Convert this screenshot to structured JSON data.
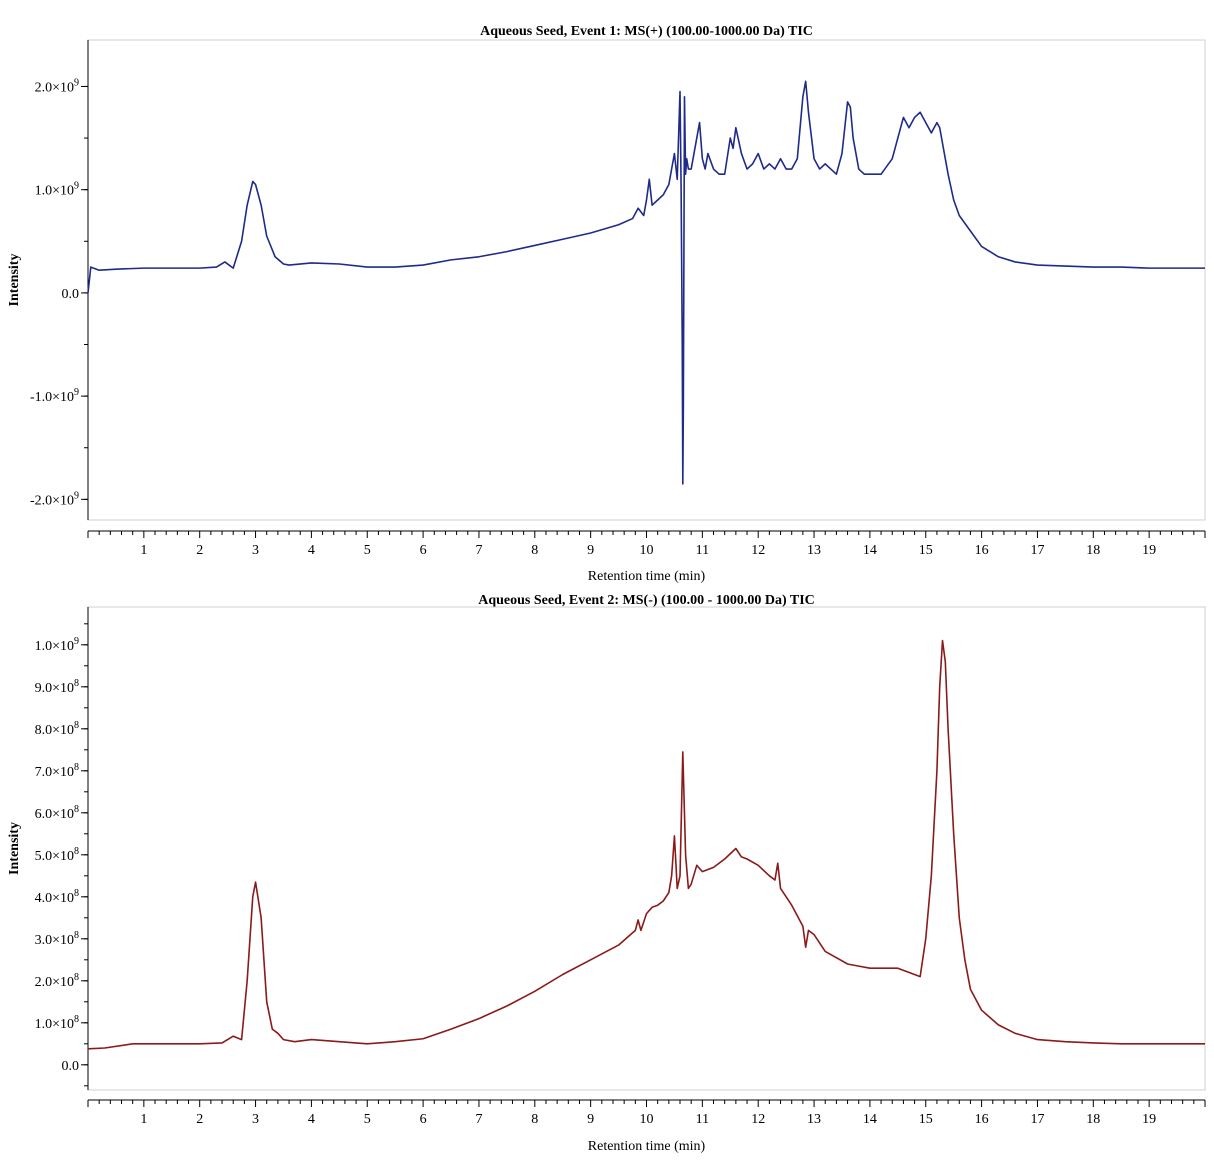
{
  "chart_data": [
    {
      "type": "line",
      "title": "Aqueous Seed, Event 1: MS(+) (100.00-1000.00 Da) TIC",
      "xlabel": "Retention time (min)",
      "ylabel": "Intensity",
      "xlim": [
        0,
        20
      ],
      "ylim": [
        -2200000000.0,
        2450000000.0
      ],
      "x_ticks": [
        "1",
        "2",
        "3",
        "4",
        "5",
        "6",
        "7",
        "8",
        "9",
        "10",
        "11",
        "12",
        "13",
        "14",
        "15",
        "16",
        "17",
        "18",
        "19"
      ],
      "y_ticks": [
        {
          "value": 2000000000.0,
          "mant": "2.0×10",
          "exp": "9"
        },
        {
          "value": 1000000000.0,
          "mant": "1.0×10",
          "exp": "9"
        },
        {
          "value": 0,
          "mant": "0.0",
          "exp": ""
        },
        {
          "value": -1000000000.0,
          "mant": "-1.0×10",
          "exp": "9"
        },
        {
          "value": -2000000000.0,
          "mant": "-2.0×10",
          "exp": "9"
        }
      ],
      "grid": false,
      "color": "#1f2a8a",
      "series": [
        {
          "x": [
            0.0,
            0.05,
            0.2,
            0.5,
            1.0,
            1.5,
            2.0,
            2.3,
            2.45,
            2.6,
            2.75,
            2.85,
            2.95,
            3.0,
            3.1,
            3.2,
            3.35,
            3.5,
            3.6,
            4.0,
            4.5,
            5.0,
            5.5,
            6.0,
            6.5,
            7.0,
            7.5,
            8.0,
            8.5,
            9.0,
            9.5,
            9.75,
            9.85,
            9.95,
            10.0,
            10.05,
            10.1,
            10.2,
            10.3,
            10.4,
            10.45,
            10.5,
            10.55,
            10.6,
            10.62,
            10.64,
            10.65,
            10.66,
            10.68,
            10.7,
            10.72,
            10.75,
            10.8,
            10.9,
            10.95,
            11.0,
            11.05,
            11.1,
            11.2,
            11.3,
            11.4,
            11.5,
            11.55,
            11.6,
            11.7,
            11.8,
            11.9,
            12.0,
            12.1,
            12.2,
            12.3,
            12.4,
            12.5,
            12.6,
            12.7,
            12.8,
            12.85,
            12.9,
            13.0,
            13.1,
            13.2,
            13.3,
            13.4,
            13.5,
            13.6,
            13.65,
            13.7,
            13.8,
            13.9,
            14.0,
            14.2,
            14.4,
            14.5,
            14.6,
            14.7,
            14.8,
            14.9,
            15.0,
            15.1,
            15.2,
            15.25,
            15.3,
            15.4,
            15.5,
            15.6,
            15.8,
            16.0,
            16.3,
            16.6,
            17.0,
            17.5,
            18.0,
            18.5,
            19.0,
            19.5,
            20.0
          ],
          "y": [
            0.0,
            250000000.0,
            220000000.0,
            230000000.0,
            240000000.0,
            240000000.0,
            240000000.0,
            250000000.0,
            300000000.0,
            240000000.0,
            500000000.0,
            850000000.0,
            1080000000.0,
            1050000000.0,
            850000000.0,
            550000000.0,
            350000000.0,
            280000000.0,
            270000000.0,
            290000000.0,
            280000000.0,
            250000000.0,
            250000000.0,
            270000000.0,
            320000000.0,
            350000000.0,
            400000000.0,
            460000000.0,
            520000000.0,
            580000000.0,
            660000000.0,
            720000000.0,
            820000000.0,
            750000000.0,
            900000000.0,
            1100000000.0,
            850000000.0,
            900000000.0,
            950000000.0,
            1050000000.0,
            1200000000.0,
            1350000000.0,
            1100000000.0,
            1950000000.0,
            1000000000.0,
            -500000000.0,
            -1850000000.0,
            -1100000000.0,
            1900000000.0,
            1150000000.0,
            1300000000.0,
            1200000000.0,
            1200000000.0,
            1500000000.0,
            1650000000.0,
            1300000000.0,
            1200000000.0,
            1350000000.0,
            1200000000.0,
            1150000000.0,
            1150000000.0,
            1500000000.0,
            1400000000.0,
            1600000000.0,
            1350000000.0,
            1200000000.0,
            1250000000.0,
            1350000000.0,
            1200000000.0,
            1250000000.0,
            1200000000.0,
            1300000000.0,
            1200000000.0,
            1200000000.0,
            1300000000.0,
            1900000000.0,
            2050000000.0,
            1750000000.0,
            1300000000.0,
            1200000000.0,
            1250000000.0,
            1200000000.0,
            1150000000.0,
            1350000000.0,
            1850000000.0,
            1800000000.0,
            1500000000.0,
            1200000000.0,
            1150000000.0,
            1150000000.0,
            1150000000.0,
            1300000000.0,
            1500000000.0,
            1700000000.0,
            1600000000.0,
            1700000000.0,
            1750000000.0,
            1650000000.0,
            1550000000.0,
            1650000000.0,
            1600000000.0,
            1450000000.0,
            1150000000.0,
            900000000.0,
            750000000.0,
            600000000.0,
            450000000.0,
            350000000.0,
            300000000.0,
            270000000.0,
            260000000.0,
            250000000.0,
            250000000.0,
            240000000.0,
            240000000.0,
            240000000.0
          ]
        }
      ]
    },
    {
      "type": "line",
      "title": "Aqueous Seed, Event 2: MS(-) (100.00 - 1000.00 Da) TIC",
      "xlabel": "Retention time (min)",
      "ylabel": "Intensity",
      "xlim": [
        0,
        20
      ],
      "ylim": [
        -60000000.0,
        1090000000.0
      ],
      "x_ticks": [
        "1",
        "2",
        "3",
        "4",
        "5",
        "6",
        "7",
        "8",
        "9",
        "10",
        "11",
        "12",
        "13",
        "14",
        "15",
        "16",
        "17",
        "18",
        "19"
      ],
      "y_ticks": [
        {
          "value": 1000000000.0,
          "mant": "1.0×10",
          "exp": "9"
        },
        {
          "value": 900000000.0,
          "mant": "9.0×10",
          "exp": "8"
        },
        {
          "value": 800000000.0,
          "mant": "8.0×10",
          "exp": "8"
        },
        {
          "value": 700000000.0,
          "mant": "7.0×10",
          "exp": "8"
        },
        {
          "value": 600000000.0,
          "mant": "6.0×10",
          "exp": "8"
        },
        {
          "value": 500000000.0,
          "mant": "5.0×10",
          "exp": "8"
        },
        {
          "value": 400000000.0,
          "mant": "4.0×10",
          "exp": "8"
        },
        {
          "value": 300000000.0,
          "mant": "3.0×10",
          "exp": "8"
        },
        {
          "value": 200000000.0,
          "mant": "2.0×10",
          "exp": "8"
        },
        {
          "value": 100000000.0,
          "mant": "1.0×10",
          "exp": "8"
        },
        {
          "value": 0,
          "mant": "0.0",
          "exp": ""
        }
      ],
      "grid": false,
      "color": "#8b1a1a",
      "series": [
        {
          "x": [
            0.0,
            0.3,
            0.8,
            1.5,
            2.0,
            2.4,
            2.6,
            2.75,
            2.85,
            2.95,
            3.0,
            3.1,
            3.2,
            3.3,
            3.4,
            3.5,
            3.7,
            4.0,
            4.5,
            5.0,
            5.5,
            6.0,
            6.5,
            7.0,
            7.5,
            8.0,
            8.5,
            9.0,
            9.5,
            9.8,
            9.85,
            9.9,
            10.0,
            10.1,
            10.2,
            10.3,
            10.4,
            10.45,
            10.5,
            10.55,
            10.6,
            10.65,
            10.7,
            10.75,
            10.8,
            10.9,
            11.0,
            11.2,
            11.4,
            11.6,
            11.7,
            11.8,
            12.0,
            12.2,
            12.3,
            12.35,
            12.4,
            12.6,
            12.8,
            12.85,
            12.9,
            13.0,
            13.2,
            13.4,
            13.6,
            13.8,
            14.0,
            14.5,
            14.9,
            15.0,
            15.1,
            15.2,
            15.25,
            15.3,
            15.35,
            15.4,
            15.5,
            15.6,
            15.7,
            15.8,
            16.0,
            16.3,
            16.6,
            17.0,
            17.5,
            18.0,
            18.5,
            19.0,
            19.5,
            20.0
          ],
          "y": [
            38000000.0,
            40000000.0,
            50000000.0,
            50000000.0,
            50000000.0,
            52000000.0,
            68000000.0,
            60000000.0,
            200000000.0,
            400000000.0,
            435000000.0,
            350000000.0,
            150000000.0,
            85000000.0,
            75000000.0,
            60000000.0,
            55000000.0,
            60000000.0,
            55000000.0,
            50000000.0,
            55000000.0,
            62000000.0,
            85000000.0,
            110000000.0,
            140000000.0,
            175000000.0,
            215000000.0,
            250000000.0,
            285000000.0,
            320000000.0,
            345000000.0,
            320000000.0,
            360000000.0,
            375000000.0,
            380000000.0,
            390000000.0,
            410000000.0,
            450000000.0,
            545000000.0,
            420000000.0,
            450000000.0,
            745000000.0,
            500000000.0,
            420000000.0,
            430000000.0,
            475000000.0,
            460000000.0,
            470000000.0,
            490000000.0,
            515000000.0,
            495000000.0,
            490000000.0,
            475000000.0,
            450000000.0,
            440000000.0,
            480000000.0,
            420000000.0,
            380000000.0,
            330000000.0,
            280000000.0,
            320000000.0,
            310000000.0,
            270000000.0,
            255000000.0,
            240000000.0,
            235000000.0,
            230000000.0,
            230000000.0,
            210000000.0,
            300000000.0,
            450000000.0,
            700000000.0,
            900000000.0,
            1010000000.0,
            960000000.0,
            800000000.0,
            550000000.0,
            350000000.0,
            250000000.0,
            180000000.0,
            130000000.0,
            95000000.0,
            75000000.0,
            60000000.0,
            55000000.0,
            52000000.0,
            50000000.0,
            50000000.0,
            50000000.0,
            50000000.0
          ]
        }
      ]
    }
  ]
}
